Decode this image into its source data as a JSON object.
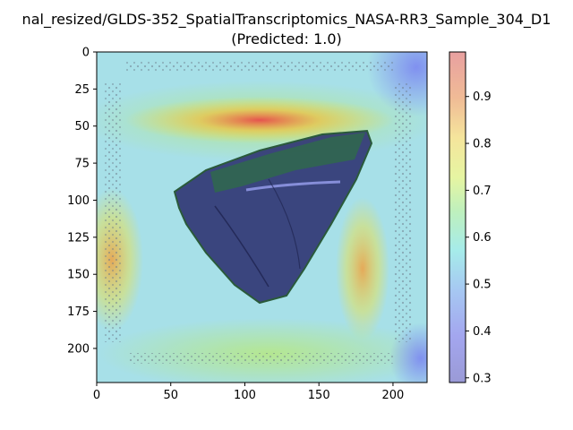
{
  "title_line1": "nal_resized/GLDS-352_SpatialTranscriptomics_NASA-RR3_Sample_304_D1",
  "title_line2": "(Predicted: 1.0)",
  "chart_data": {
    "type": "heatmap",
    "description_overlay": "tissue section image with jet-colormap saliency overlay",
    "colormap": "jet",
    "alpha": "semi-transparent",
    "x_ticks": [
      0,
      50,
      100,
      150,
      200
    ],
    "y_ticks": [
      0,
      25,
      50,
      75,
      100,
      125,
      150,
      175,
      200
    ],
    "xlim": [
      0,
      223
    ],
    "ylim": [
      223,
      0
    ],
    "colorbar": {
      "ticks": [
        0.3,
        0.4,
        0.5,
        0.6,
        0.7,
        0.8,
        0.9
      ],
      "range": [
        0.29,
        0.995
      ]
    },
    "hotspots": [
      {
        "x": 110,
        "y": 45,
        "value": 0.92
      },
      {
        "x": 12,
        "y": 140,
        "value": 0.82
      },
      {
        "x": 180,
        "y": 140,
        "value": 0.78
      },
      {
        "x": 110,
        "y": 110,
        "value": 0.55
      },
      {
        "x": 215,
        "y": 15,
        "value": 0.35
      }
    ]
  }
}
